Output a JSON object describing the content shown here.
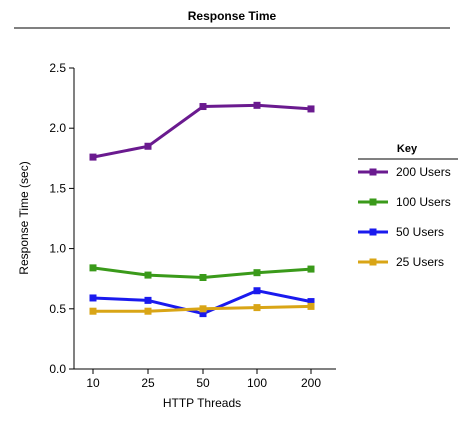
{
  "chart_data": {
    "type": "line",
    "title": "Response Time",
    "xlabel": "HTTP Threads",
    "ylabel": "Response Time (sec)",
    "categories": [
      "10",
      "25",
      "50",
      "100",
      "200"
    ],
    "ylim": [
      0,
      2.5
    ],
    "yticks": [
      "0.0",
      "0.5",
      "1.0",
      "1.5",
      "2.0",
      "2.5"
    ],
    "ytick_values": [
      0,
      0.5,
      1.0,
      1.5,
      2.0,
      2.5
    ],
    "grid": false,
    "legend": {
      "title": "Key",
      "placement": "right"
    },
    "series": [
      {
        "name": "200 Users",
        "color": "#6a1a8f",
        "values": [
          1.76,
          1.85,
          2.18,
          2.19,
          2.16
        ]
      },
      {
        "name": "100 Users",
        "color": "#3a9a1a",
        "values": [
          0.84,
          0.78,
          0.76,
          0.8,
          0.83
        ]
      },
      {
        "name": "50 Users",
        "color": "#1a1aee",
        "values": [
          0.59,
          0.57,
          0.46,
          0.65,
          0.56
        ]
      },
      {
        "name": "25 Users",
        "color": "#d9a516",
        "values": [
          0.48,
          0.48,
          0.5,
          0.51,
          0.52
        ]
      }
    ]
  }
}
